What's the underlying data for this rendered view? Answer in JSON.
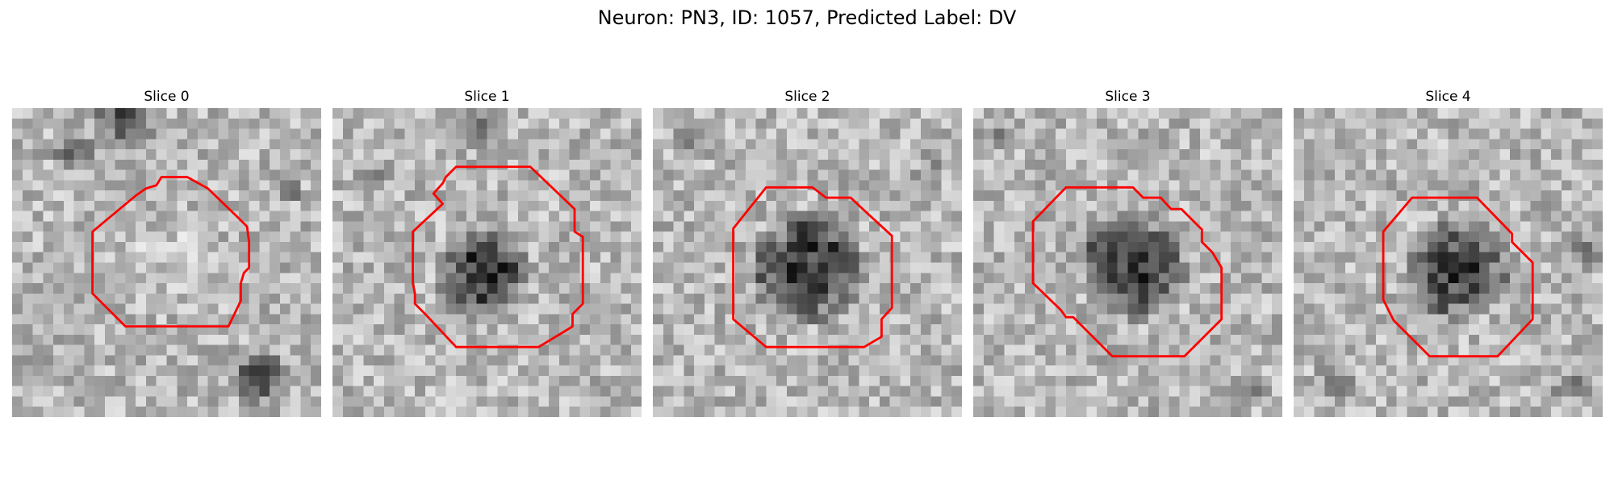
{
  "figure": {
    "title": "Neuron: PN3, ID: 1057, Predicted Label: DV"
  },
  "colors": {
    "contour": "#ff0000",
    "background": "#ffffff"
  },
  "panels": [
    {
      "title": "Slice 0",
      "cell_contrast": "bright"
    },
    {
      "title": "Slice 1",
      "cell_contrast": "dark"
    },
    {
      "title": "Slice 2",
      "cell_contrast": "dark"
    },
    {
      "title": "Slice 3",
      "cell_contrast": "dark"
    },
    {
      "title": "Slice 4",
      "cell_contrast": "dark"
    }
  ]
}
